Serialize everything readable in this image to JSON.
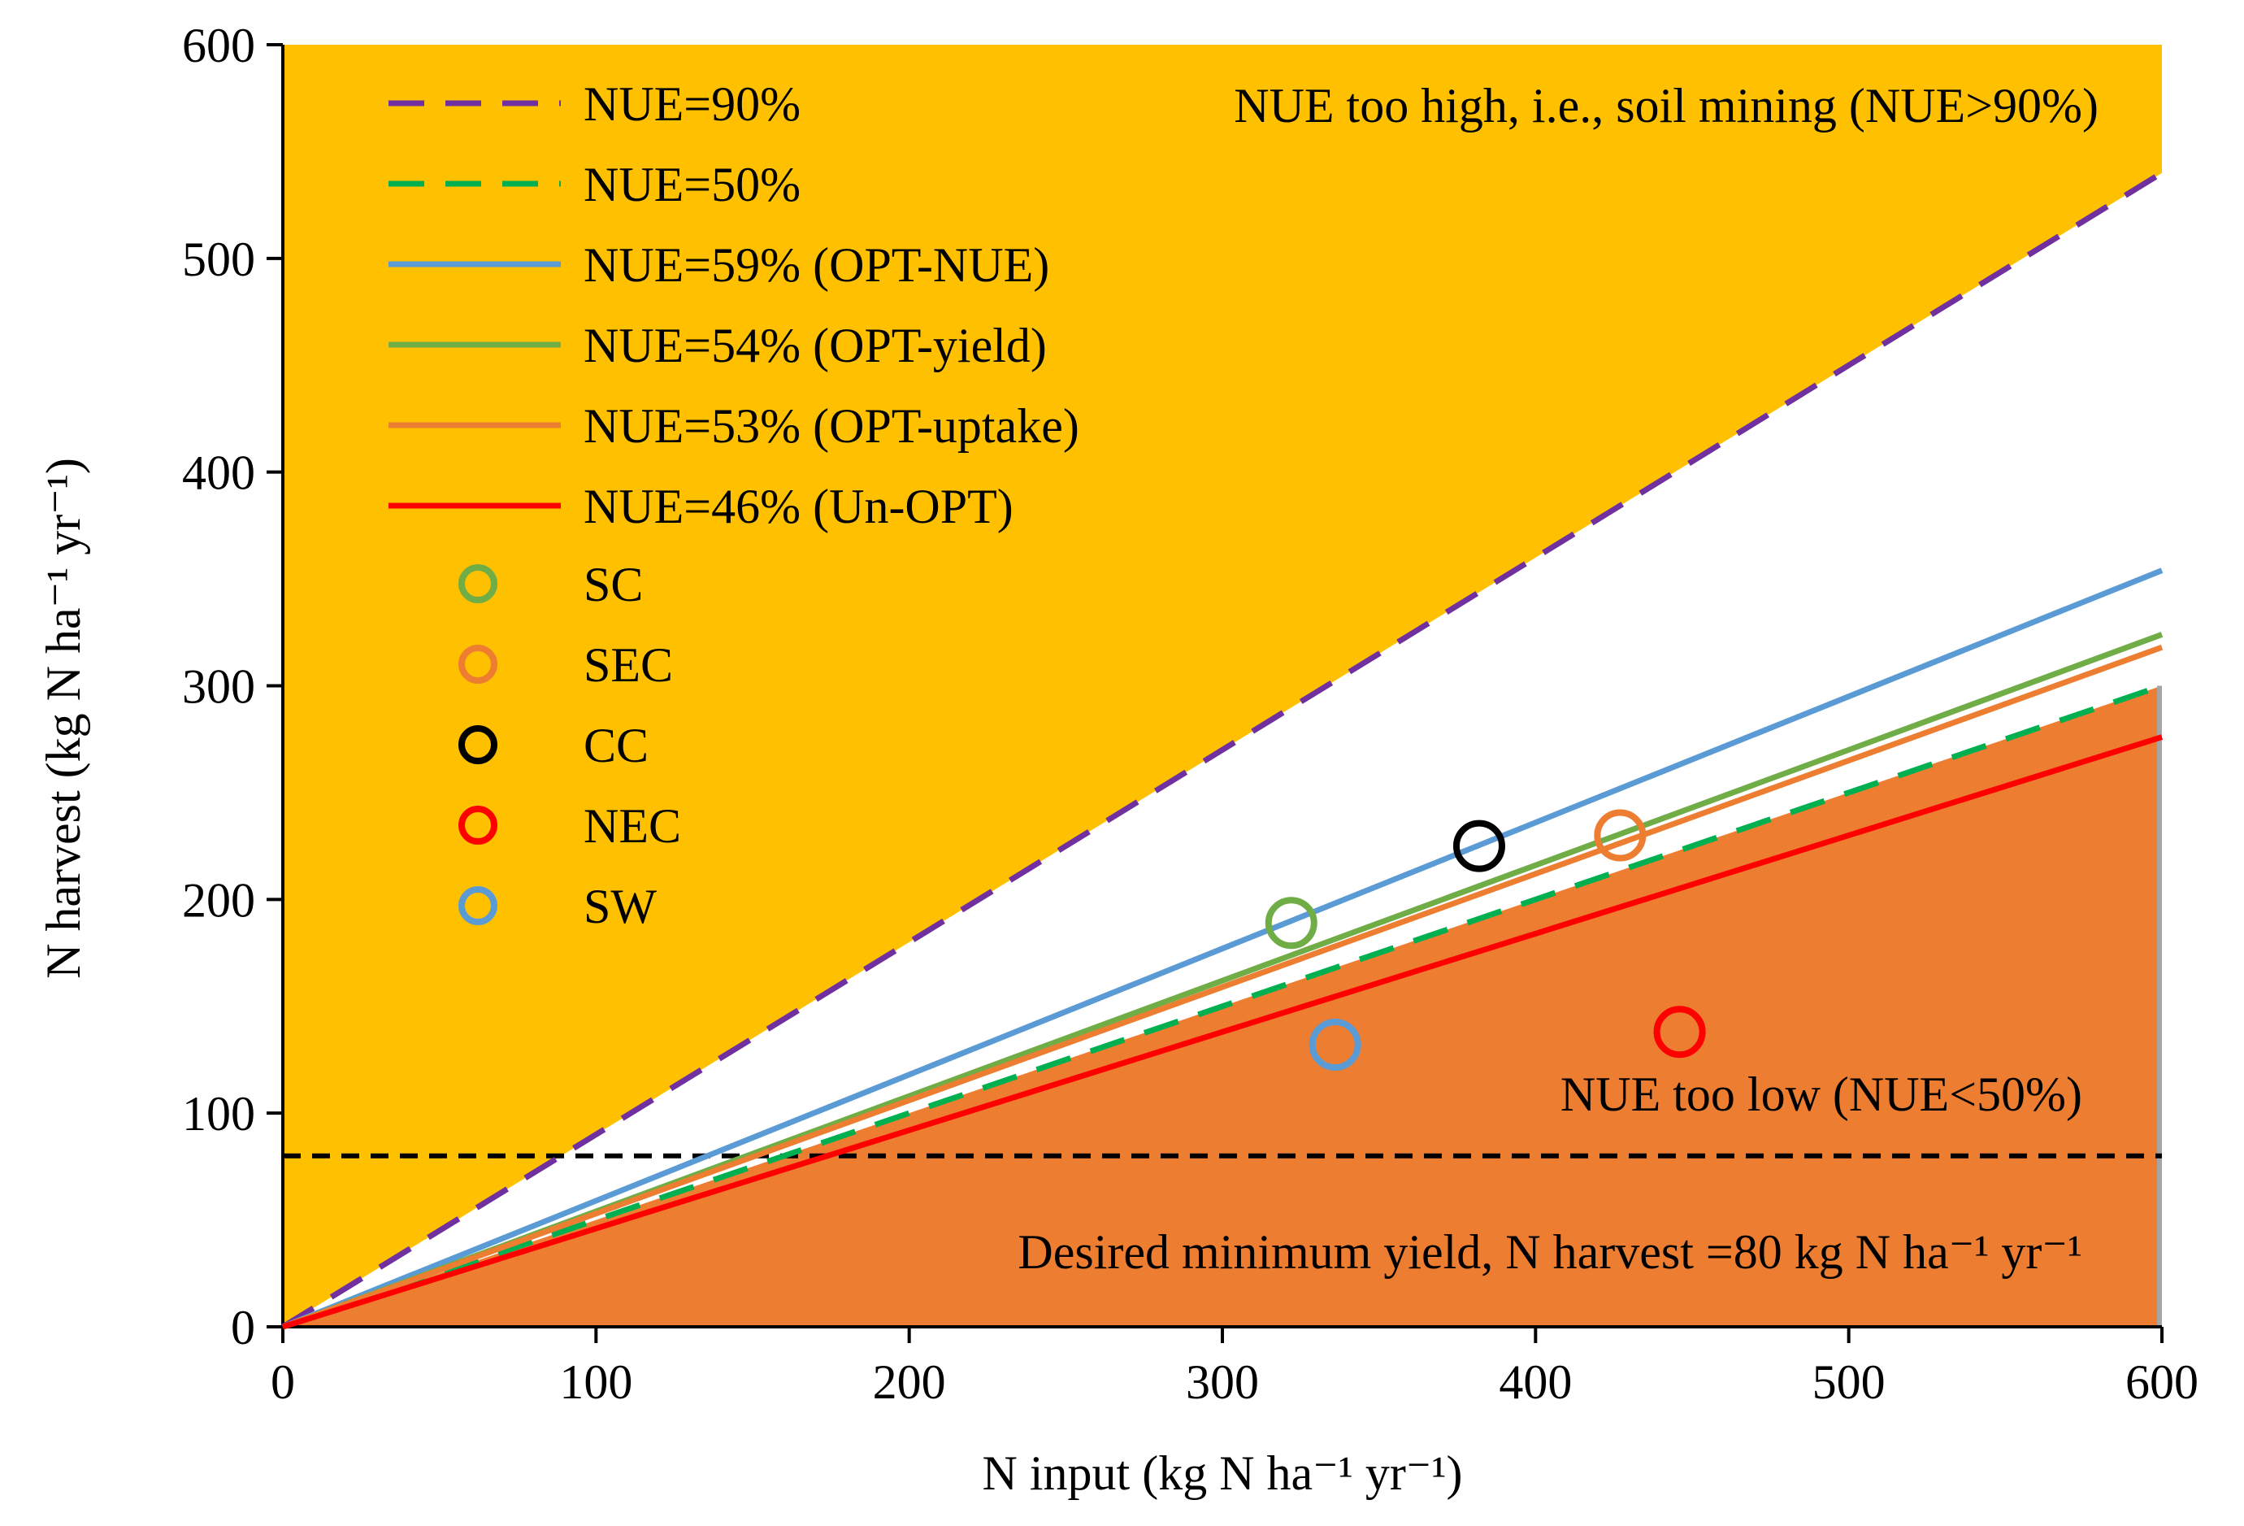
{
  "chart_data": {
    "type": "line",
    "xlim": [
      0,
      600
    ],
    "ylim": [
      0,
      600
    ],
    "xticks": [
      "0",
      "100",
      "200",
      "300",
      "400",
      "500",
      "600"
    ],
    "yticks": [
      "0",
      "100",
      "200",
      "300",
      "400",
      "500",
      "600"
    ],
    "xlabel": "N input (kg N ha⁻¹ yr⁻¹)",
    "ylabel": "N harvest (kg N ha⁻¹ yr⁻¹)",
    "regions": [
      {
        "name": "soil-mining",
        "label": "NUE too high, i.e., soil mining (NUE>90%)",
        "color": "#FFC000",
        "slope": 0.9
      },
      {
        "name": "too-low",
        "label": "NUE too low (NUE<50%)",
        "color": "#ED7D31",
        "slope": 0.5
      }
    ],
    "min_yield": {
      "value": 80,
      "label": "Desired minimum yield, N harvest =80 kg N ha⁻¹ yr⁻¹",
      "color": "#000000"
    },
    "lines": [
      {
        "label": "NUE=90%",
        "slope": 0.9,
        "color": "#7030A0",
        "dashed": true
      },
      {
        "label": "NUE=50%",
        "slope": 0.5,
        "color": "#00B050",
        "dashed": true
      },
      {
        "label": "NUE=59% (OPT-NUE)",
        "slope": 0.59,
        "color": "#5B9BD5",
        "dashed": false
      },
      {
        "label": "NUE=54% (OPT-yield)",
        "slope": 0.54,
        "color": "#70AD47",
        "dashed": false
      },
      {
        "label": "NUE=53% (OPT-uptake)",
        "slope": 0.53,
        "color": "#ED7D31",
        "dashed": false
      },
      {
        "label": "NUE=46% (Un-OPT)",
        "slope": 0.46,
        "color": "#FF0000",
        "dashed": false
      }
    ],
    "points": [
      {
        "label": "SC",
        "x": 322,
        "y": 189,
        "color": "#70AD47"
      },
      {
        "label": "SEC",
        "x": 427,
        "y": 230,
        "color": "#ED7D31"
      },
      {
        "label": "CC",
        "x": 382,
        "y": 225,
        "color": "#000000"
      },
      {
        "label": "NEC",
        "x": 446,
        "y": 138,
        "color": "#FF0000"
      },
      {
        "label": "SW",
        "x": 336,
        "y": 132,
        "color": "#5B9BD5"
      }
    ]
  }
}
